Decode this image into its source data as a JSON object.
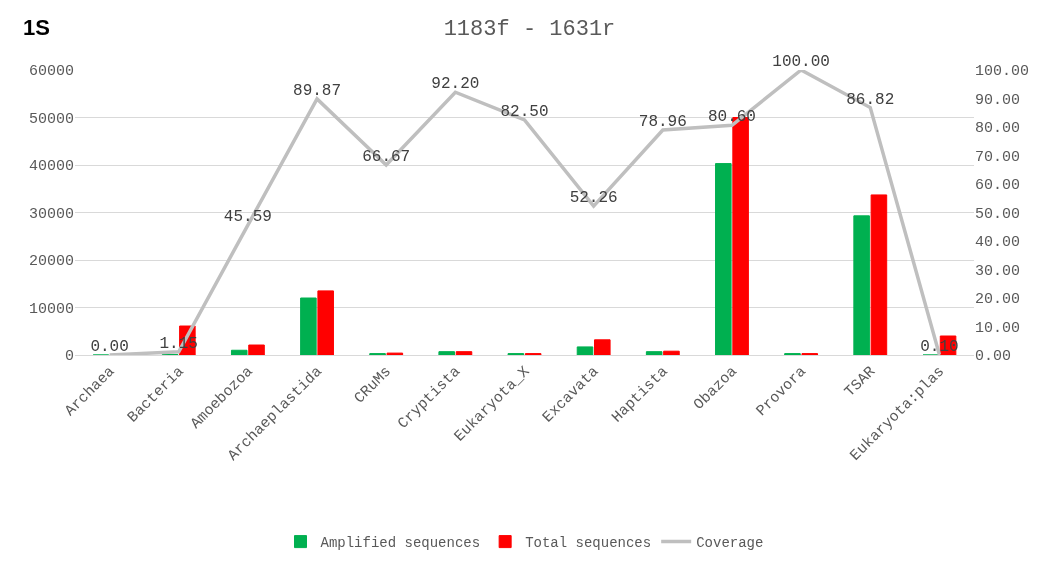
{
  "chart_data": {
    "type": "bar",
    "title": "1183f - 1631r",
    "annotations": [
      "1S"
    ],
    "categories": [
      "Archaea",
      "Bacteria",
      "Amoebozoa",
      "Archaeplastida",
      "CRuMs",
      "Cryptista",
      "Eukaryota_X",
      "Excavata",
      "Haptista",
      "Obazoa",
      "Provora",
      "TSAR",
      "Eukaryota:plas"
    ],
    "series": [
      {
        "name": "Amplified sequences",
        "color": "#00b050",
        "values": [
          0,
          100,
          1000,
          12000,
          300,
          700,
          300,
          1700,
          700,
          40300,
          300,
          29300,
          0
        ]
      },
      {
        "name": "Total sequences",
        "color": "#ff0000",
        "values": [
          0,
          6100,
          2100,
          13500,
          400,
          700,
          300,
          3200,
          800,
          50000,
          300,
          33700,
          4000
        ]
      },
      {
        "name": "Coverage",
        "type": "line",
        "axis": "y2",
        "color": "#bfbfbf",
        "values": [
          0.0,
          1.15,
          45.59,
          89.87,
          66.67,
          92.2,
          82.5,
          52.26,
          78.96,
          80.6,
          100.0,
          86.82,
          0.1
        ],
        "value_labels": [
          "0.00",
          "1.15",
          "45.59",
          "89.87",
          "66.67",
          "92.20",
          "82.50",
          "52.26",
          "78.96",
          "80.60",
          "100.00",
          "86.82",
          "0.10"
        ]
      }
    ],
    "ylim": [
      0,
      60000
    ],
    "yticks": [
      0,
      10000,
      20000,
      30000,
      40000,
      50000,
      60000
    ],
    "y2lim": [
      0,
      100
    ],
    "y2ticks": [
      {
        "value": 0,
        "label": "0.00"
      },
      {
        "value": 10,
        "label": "10.00"
      },
      {
        "value": 20,
        "label": "20.00"
      },
      {
        "value": 30,
        "label": "30.00"
      },
      {
        "value": 40,
        "label": "40.00"
      },
      {
        "value": 50,
        "label": "50.00"
      },
      {
        "value": 60,
        "label": "60.00"
      },
      {
        "value": 70,
        "label": "70.00"
      },
      {
        "value": 80,
        "label": "80.00"
      },
      {
        "value": 90,
        "label": "90.00"
      },
      {
        "value": 100,
        "label": "100.00"
      }
    ],
    "grid": "y",
    "legend": "bottom",
    "marker": "none",
    "line_style": "solid"
  }
}
